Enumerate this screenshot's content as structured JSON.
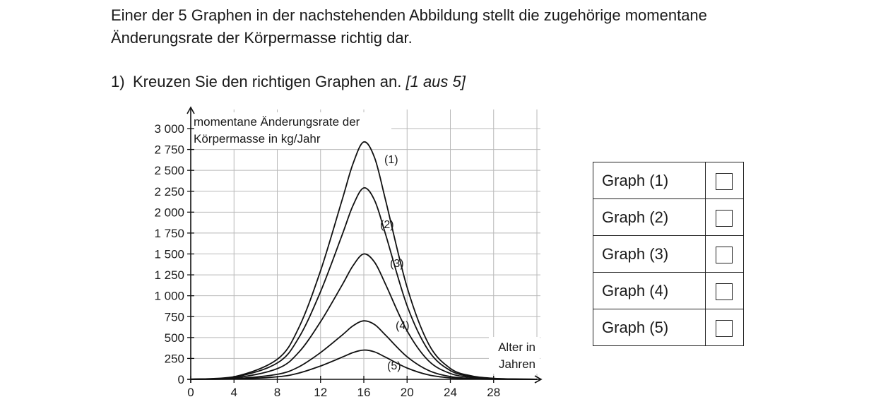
{
  "intro_text": "Einer der 5 Graphen in der nachstehenden Abbildung stellt die zugehörige momentane Änderungsrate der Körpermasse richtig dar.",
  "task": {
    "number": "1)",
    "text": "Kreuzen Sie den richtigen Graphen an.",
    "hint": "[1 aus 5]"
  },
  "chart_data": {
    "type": "line",
    "ylabel_lines": [
      "momentane Änderungsrate der",
      "Körpermasse in kg/Jahr"
    ],
    "xlabel_lines": [
      "Alter in",
      "Jahren"
    ],
    "xlim": [
      0,
      32
    ],
    "ylim": [
      0,
      3000
    ],
    "x_ticks": [
      0,
      4,
      8,
      12,
      16,
      20,
      24,
      28
    ],
    "x_tick_labels": [
      "0",
      "4",
      "8",
      "12",
      "16",
      "20",
      "24",
      "28"
    ],
    "y_ticks": [
      0,
      250,
      500,
      750,
      1000,
      1250,
      1500,
      1750,
      2000,
      2250,
      2500,
      2750,
      3000
    ],
    "y_tick_labels": [
      "0",
      "250",
      "500",
      "750",
      "1 000",
      "1 250",
      "1 500",
      "1 750",
      "2 000",
      "2 250",
      "2 500",
      "2 750",
      "3 000"
    ],
    "grid": true,
    "series": [
      {
        "name": "(1)",
        "x": [
          0,
          4,
          8,
          10,
          12,
          14,
          15,
          16,
          17,
          18,
          20,
          22,
          24,
          26,
          28,
          30,
          32
        ],
        "values": [
          2,
          30,
          240,
          620,
          1300,
          2150,
          2580,
          2840,
          2650,
          2150,
          1100,
          420,
          130,
          40,
          12,
          4,
          1
        ]
      },
      {
        "name": "(2)",
        "x": [
          0,
          4,
          8,
          10,
          12,
          14,
          15,
          16,
          17,
          18,
          20,
          22,
          24,
          26,
          28,
          30,
          32
        ],
        "values": [
          2,
          25,
          195,
          500,
          1050,
          1730,
          2080,
          2290,
          2140,
          1740,
          880,
          340,
          105,
          32,
          10,
          3,
          1
        ]
      },
      {
        "name": "(3)",
        "x": [
          0,
          4,
          8,
          10,
          12,
          14,
          15,
          16,
          17,
          18,
          20,
          22,
          24,
          26,
          28,
          30,
          32
        ],
        "values": [
          1,
          16,
          128,
          325,
          690,
          1130,
          1360,
          1500,
          1400,
          1140,
          580,
          220,
          70,
          21,
          6,
          2,
          0
        ]
      },
      {
        "name": "(4)",
        "x": [
          0,
          4,
          8,
          10,
          12,
          14,
          15,
          16,
          17,
          18,
          20,
          22,
          24,
          26,
          28,
          30,
          32
        ],
        "values": [
          1,
          8,
          60,
          150,
          320,
          530,
          640,
          700,
          655,
          530,
          270,
          105,
          33,
          10,
          3,
          1,
          0
        ]
      },
      {
        "name": "(5)",
        "x": [
          0,
          4,
          8,
          10,
          12,
          14,
          15,
          16,
          17,
          18,
          20,
          22,
          24,
          26,
          28,
          30,
          32
        ],
        "values": [
          0,
          4,
          30,
          75,
          160,
          265,
          320,
          350,
          328,
          265,
          135,
          52,
          17,
          5,
          1,
          0,
          0
        ]
      }
    ],
    "colors": {
      "line": "#111111",
      "grid": "#b9b9b9"
    }
  },
  "answer_table": {
    "rows": [
      {
        "label": "Graph (1)",
        "checked": false
      },
      {
        "label": "Graph (2)",
        "checked": false
      },
      {
        "label": "Graph (3)",
        "checked": false
      },
      {
        "label": "Graph (4)",
        "checked": false
      },
      {
        "label": "Graph (5)",
        "checked": false
      }
    ]
  }
}
